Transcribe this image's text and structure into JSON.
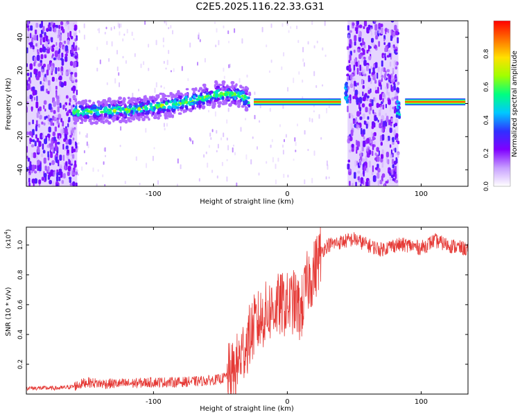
{
  "title": "C2E5.2025.116.22.33.G31",
  "chart_data": [
    {
      "type": "heatmap",
      "xlabel": "Height of straight line (km)",
      "ylabel": "Frequency (Hz)",
      "xlim": [
        -195,
        135
      ],
      "ylim": [
        -50,
        50
      ],
      "xticks": [
        -100,
        0,
        100
      ],
      "yticks": [
        -40,
        -20,
        0,
        20,
        40
      ],
      "colorbar": {
        "label": "Normalized spectral amplitude",
        "range": [
          0,
          1
        ],
        "ticks": [
          "0.0",
          "0.2",
          "0.4",
          "0.6",
          "0.8"
        ],
        "colors": [
          "#ffffff",
          "#c8a0ff",
          "#8000ff",
          "#3030ff",
          "#00c8ff",
          "#00ff80",
          "#a0ff00",
          "#ffe000",
          "#ff7000",
          "#ff0000"
        ]
      },
      "features": {
        "noisy_bands": [
          [
            -195,
            -157
          ],
          [
            45,
            83
          ]
        ],
        "drifting_trace": {
          "x": [
            -160,
            -120,
            -80,
            -50,
            -35,
            -28
          ],
          "freq": [
            -5,
            -4,
            0,
            6,
            5,
            1
          ]
        },
        "steady_line": {
          "freq": 1,
          "segments": [
            [
              -25,
              40
            ],
            [
              88,
              133
            ]
          ]
        }
      }
    },
    {
      "type": "line",
      "xlabel": "Height of straight line (km)",
      "ylabel": "SNR (10 * v/v)",
      "yscale_label": "(x10",
      "yscale_exp": "4",
      "yscale_close": ")",
      "xlim": [
        -195,
        135
      ],
      "ylim": [
        0,
        1.12
      ],
      "xticks": [
        -100,
        0,
        100
      ],
      "yticks": [
        "0.2",
        "0.4",
        "0.6",
        "0.8",
        "1.0"
      ],
      "color": "#e53935",
      "series": [
        {
          "x": [
            -195,
            -170,
            -160,
            -150,
            -140,
            -120,
            -100,
            -80,
            -60,
            -50,
            -40,
            -35,
            -30,
            -25,
            -20,
            -15,
            -10,
            -5,
            0,
            5,
            10,
            15,
            20,
            25,
            30,
            40,
            50,
            60,
            70,
            80,
            90,
            100,
            110,
            120,
            130,
            135
          ],
          "values": [
            0.04,
            0.04,
            0.05,
            0.08,
            0.07,
            0.07,
            0.08,
            0.08,
            0.09,
            0.1,
            0.14,
            0.25,
            0.35,
            0.45,
            0.5,
            0.55,
            0.58,
            0.6,
            0.6,
            0.62,
            0.55,
            0.75,
            0.82,
            0.95,
            1.0,
            1.02,
            1.04,
            1.0,
            0.97,
            1.0,
            1.0,
            0.98,
            1.03,
            1.0,
            0.98,
            0.97
          ]
        }
      ]
    }
  ]
}
